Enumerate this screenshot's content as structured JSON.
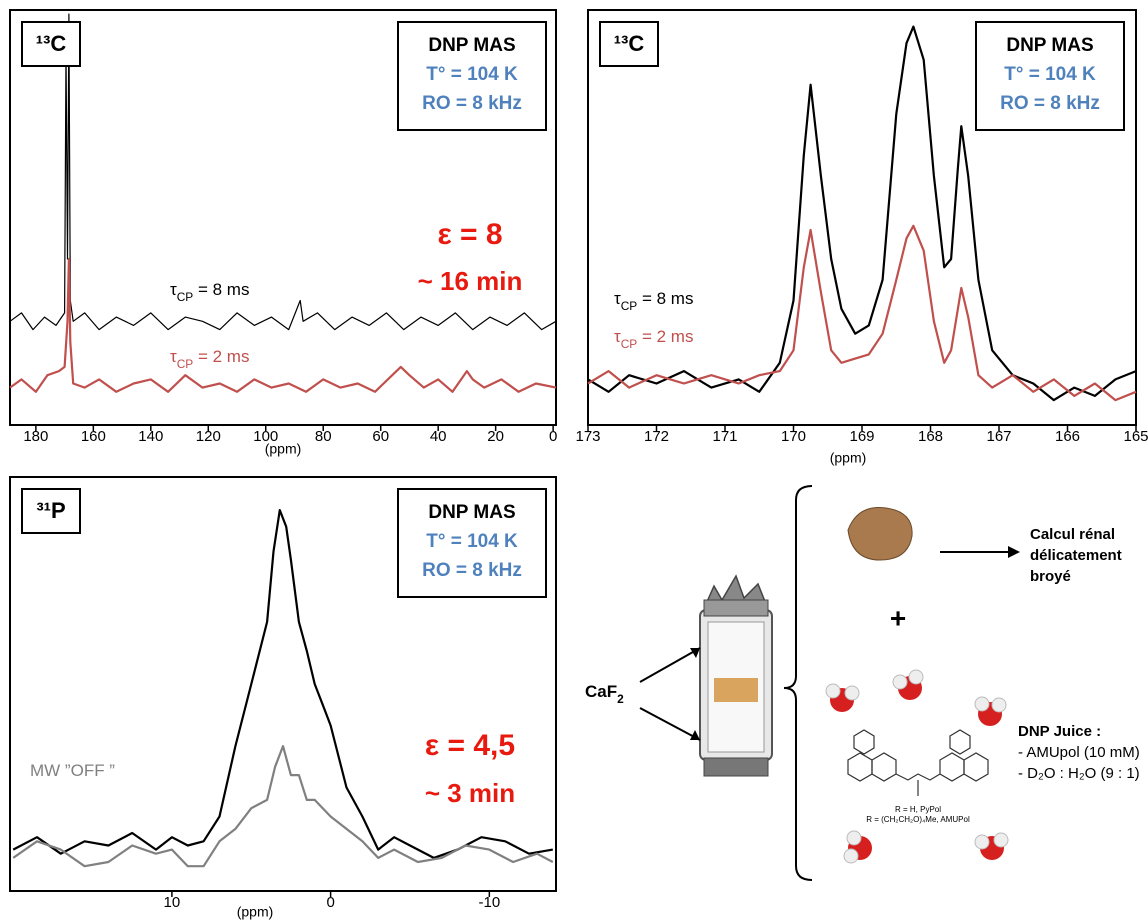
{
  "chart_data": [
    {
      "type": "line",
      "nucleus": "¹³C",
      "x_label": "(ppm)",
      "info": [
        "DNP MAS",
        "T° = 104 K",
        "RO = 8 kHz"
      ],
      "enhancement": "ε = 8",
      "time": "~ 16 min",
      "xlim": [
        189,
        -1
      ],
      "ylim": [
        0,
        100
      ],
      "xticks": [
        180,
        160,
        140,
        120,
        100,
        80,
        60,
        40,
        20,
        0
      ],
      "series": [
        {
          "color": "#000000",
          "label": {
            "symbol": "τ",
            "sub": "CP",
            "text": " = 8 ms"
          },
          "x": [
            189,
            185,
            181,
            177,
            173,
            170,
            169.5,
            169,
            168.5,
            168,
            167,
            163,
            158,
            152,
            146,
            140,
            134,
            128,
            122,
            116,
            110,
            104,
            98,
            92,
            88,
            87,
            82,
            76,
            70,
            64,
            58,
            52,
            46,
            40,
            34,
            28,
            22,
            16,
            10,
            4,
            -1
          ],
          "values": [
            25,
            27,
            23,
            26,
            24,
            27,
            90,
            40,
            99,
            30,
            25,
            27,
            23,
            26,
            24,
            27,
            23,
            26,
            25,
            23,
            27,
            24,
            26,
            23,
            30,
            25,
            27,
            23,
            26,
            24,
            27,
            23,
            26,
            24,
            27,
            23,
            26,
            24,
            27,
            23,
            25
          ]
        },
        {
          "color": "#c0504d",
          "label": {
            "symbol": "τ",
            "sub": "CP",
            "text": " = 2 ms"
          },
          "x": [
            189,
            185,
            180,
            176,
            172,
            170,
            169,
            168.5,
            168,
            167,
            163,
            158,
            152,
            146,
            140,
            134,
            128,
            122,
            116,
            110,
            104,
            98,
            92,
            86,
            80,
            74,
            68,
            62,
            56,
            53,
            50,
            45,
            40,
            35,
            30,
            28,
            24,
            18,
            12,
            6,
            -1
          ],
          "values": [
            9,
            11,
            8,
            12,
            13,
            14,
            25,
            40,
            20,
            10,
            9,
            11,
            8,
            10,
            11,
            8,
            12,
            9,
            10,
            8,
            11,
            9,
            10,
            8,
            11,
            9,
            10,
            8,
            12,
            14,
            12,
            9,
            11,
            8,
            13,
            11,
            9,
            11,
            8,
            10,
            9
          ]
        }
      ]
    },
    {
      "type": "line",
      "nucleus": "¹³C",
      "x_label": "(ppm)",
      "info": [
        "DNP MAS",
        "T° = 104 K",
        "RO = 8 kHz"
      ],
      "xlim": [
        173,
        165
      ],
      "ylim": [
        0,
        100
      ],
      "xticks": [
        173,
        172,
        171,
        170,
        169,
        168,
        167,
        166,
        165
      ],
      "series": [
        {
          "color": "#000000",
          "label": {
            "symbol": "τ",
            "sub": "CP",
            "text": " = 8 ms"
          },
          "x": [
            173,
            172.7,
            172.4,
            172,
            171.6,
            171.2,
            170.8,
            170.5,
            170.2,
            170,
            169.85,
            169.75,
            169.6,
            169.45,
            169.3,
            169.1,
            168.9,
            168.7,
            168.5,
            168.35,
            168.25,
            168.1,
            167.95,
            167.8,
            167.7,
            167.6,
            167.55,
            167.45,
            167.3,
            167.1,
            166.8,
            166.5,
            166.2,
            165.9,
            165.6,
            165.3,
            165
          ],
          "values": [
            11,
            8,
            12,
            10,
            13,
            9,
            11,
            8,
            15,
            30,
            65,
            82,
            60,
            40,
            28,
            22,
            24,
            35,
            75,
            92,
            96,
            88,
            60,
            38,
            40,
            62,
            72,
            60,
            35,
            18,
            12,
            10,
            6,
            9,
            7,
            11,
            13
          ]
        },
        {
          "color": "#c0504d",
          "label": {
            "symbol": "τ",
            "sub": "CP",
            "text": " = 2 ms"
          },
          "x": [
            173,
            172.7,
            172.4,
            172,
            171.6,
            171.2,
            170.8,
            170.5,
            170.2,
            170,
            169.85,
            169.75,
            169.6,
            169.45,
            169.3,
            169.1,
            168.9,
            168.7,
            168.5,
            168.35,
            168.25,
            168.1,
            167.95,
            167.8,
            167.7,
            167.6,
            167.55,
            167.45,
            167.3,
            167.1,
            166.8,
            166.5,
            166.2,
            165.9,
            165.6,
            165.3,
            165
          ],
          "values": [
            10,
            13,
            9,
            12,
            10,
            12,
            10,
            12,
            13,
            18,
            38,
            47,
            32,
            18,
            15,
            16,
            17,
            22,
            35,
            45,
            48,
            42,
            25,
            15,
            18,
            28,
            33,
            26,
            12,
            9,
            12,
            8,
            11,
            7,
            10,
            6,
            8
          ]
        }
      ]
    },
    {
      "type": "line",
      "nucleus": "³¹P",
      "x_label": "(ppm)",
      "info": [
        "DNP MAS",
        "T° = 104 K",
        "RO = 8 kHz"
      ],
      "enhancement": "ε = 4,5",
      "time": "~ 3 min",
      "xlim": [
        20.2,
        -14.2
      ],
      "ylim": [
        0,
        100
      ],
      "xticks": [
        10,
        0,
        -10
      ],
      "series": [
        {
          "color": "#000000",
          "x": [
            20,
            18.5,
            17,
            15.5,
            14,
            12.5,
            11,
            10,
            9,
            8,
            7,
            6,
            5,
            4,
            3.6,
            3.2,
            2.8,
            2.5,
            2,
            1.5,
            1,
            0.5,
            0,
            -1,
            -2,
            -3,
            -4,
            -5,
            -6.5,
            -8,
            -9.5,
            -11,
            -12.5,
            -14
          ],
          "values": [
            10,
            13,
            9,
            12,
            11,
            14,
            10,
            13,
            11,
            12,
            18,
            35,
            50,
            65,
            82,
            92,
            88,
            80,
            65,
            58,
            50,
            45,
            40,
            25,
            18,
            10,
            13,
            11,
            8,
            10,
            13,
            12,
            9,
            10
          ]
        },
        {
          "color": "#808080",
          "label": {
            "text": "MW ”OFF ”"
          },
          "x": [
            20,
            18.5,
            17,
            15.5,
            14,
            12.5,
            11,
            10,
            9,
            8,
            7,
            6,
            5,
            4,
            3.5,
            3,
            2.5,
            2,
            1.5,
            1,
            0,
            -1,
            -2,
            -3,
            -4,
            -5.5,
            -7,
            -8.5,
            -10,
            -11.5,
            -13,
            -14
          ],
          "values": [
            8,
            12,
            10,
            6,
            7,
            11,
            9,
            10,
            6,
            6,
            12,
            15,
            20,
            22,
            30,
            35,
            28,
            28,
            22,
            22,
            18,
            15,
            12,
            8,
            10,
            7,
            8,
            11,
            10,
            7,
            9,
            7
          ]
        }
      ]
    }
  ],
  "diagram": {
    "caf2": {
      "text": "CaF",
      "sub": "2"
    },
    "stone_label": [
      "Calcul rénal",
      "délicatement",
      "broyé"
    ],
    "plus": "+",
    "molecule_labels": [
      "R = H, PyPol",
      "R = (CH₂CH₂O)₄Me, AMUPol"
    ],
    "juice": [
      "DNP Juice :",
      "- AMUpol (10 mM)",
      "- D₂O : H₂O (9 : 1)"
    ]
  }
}
